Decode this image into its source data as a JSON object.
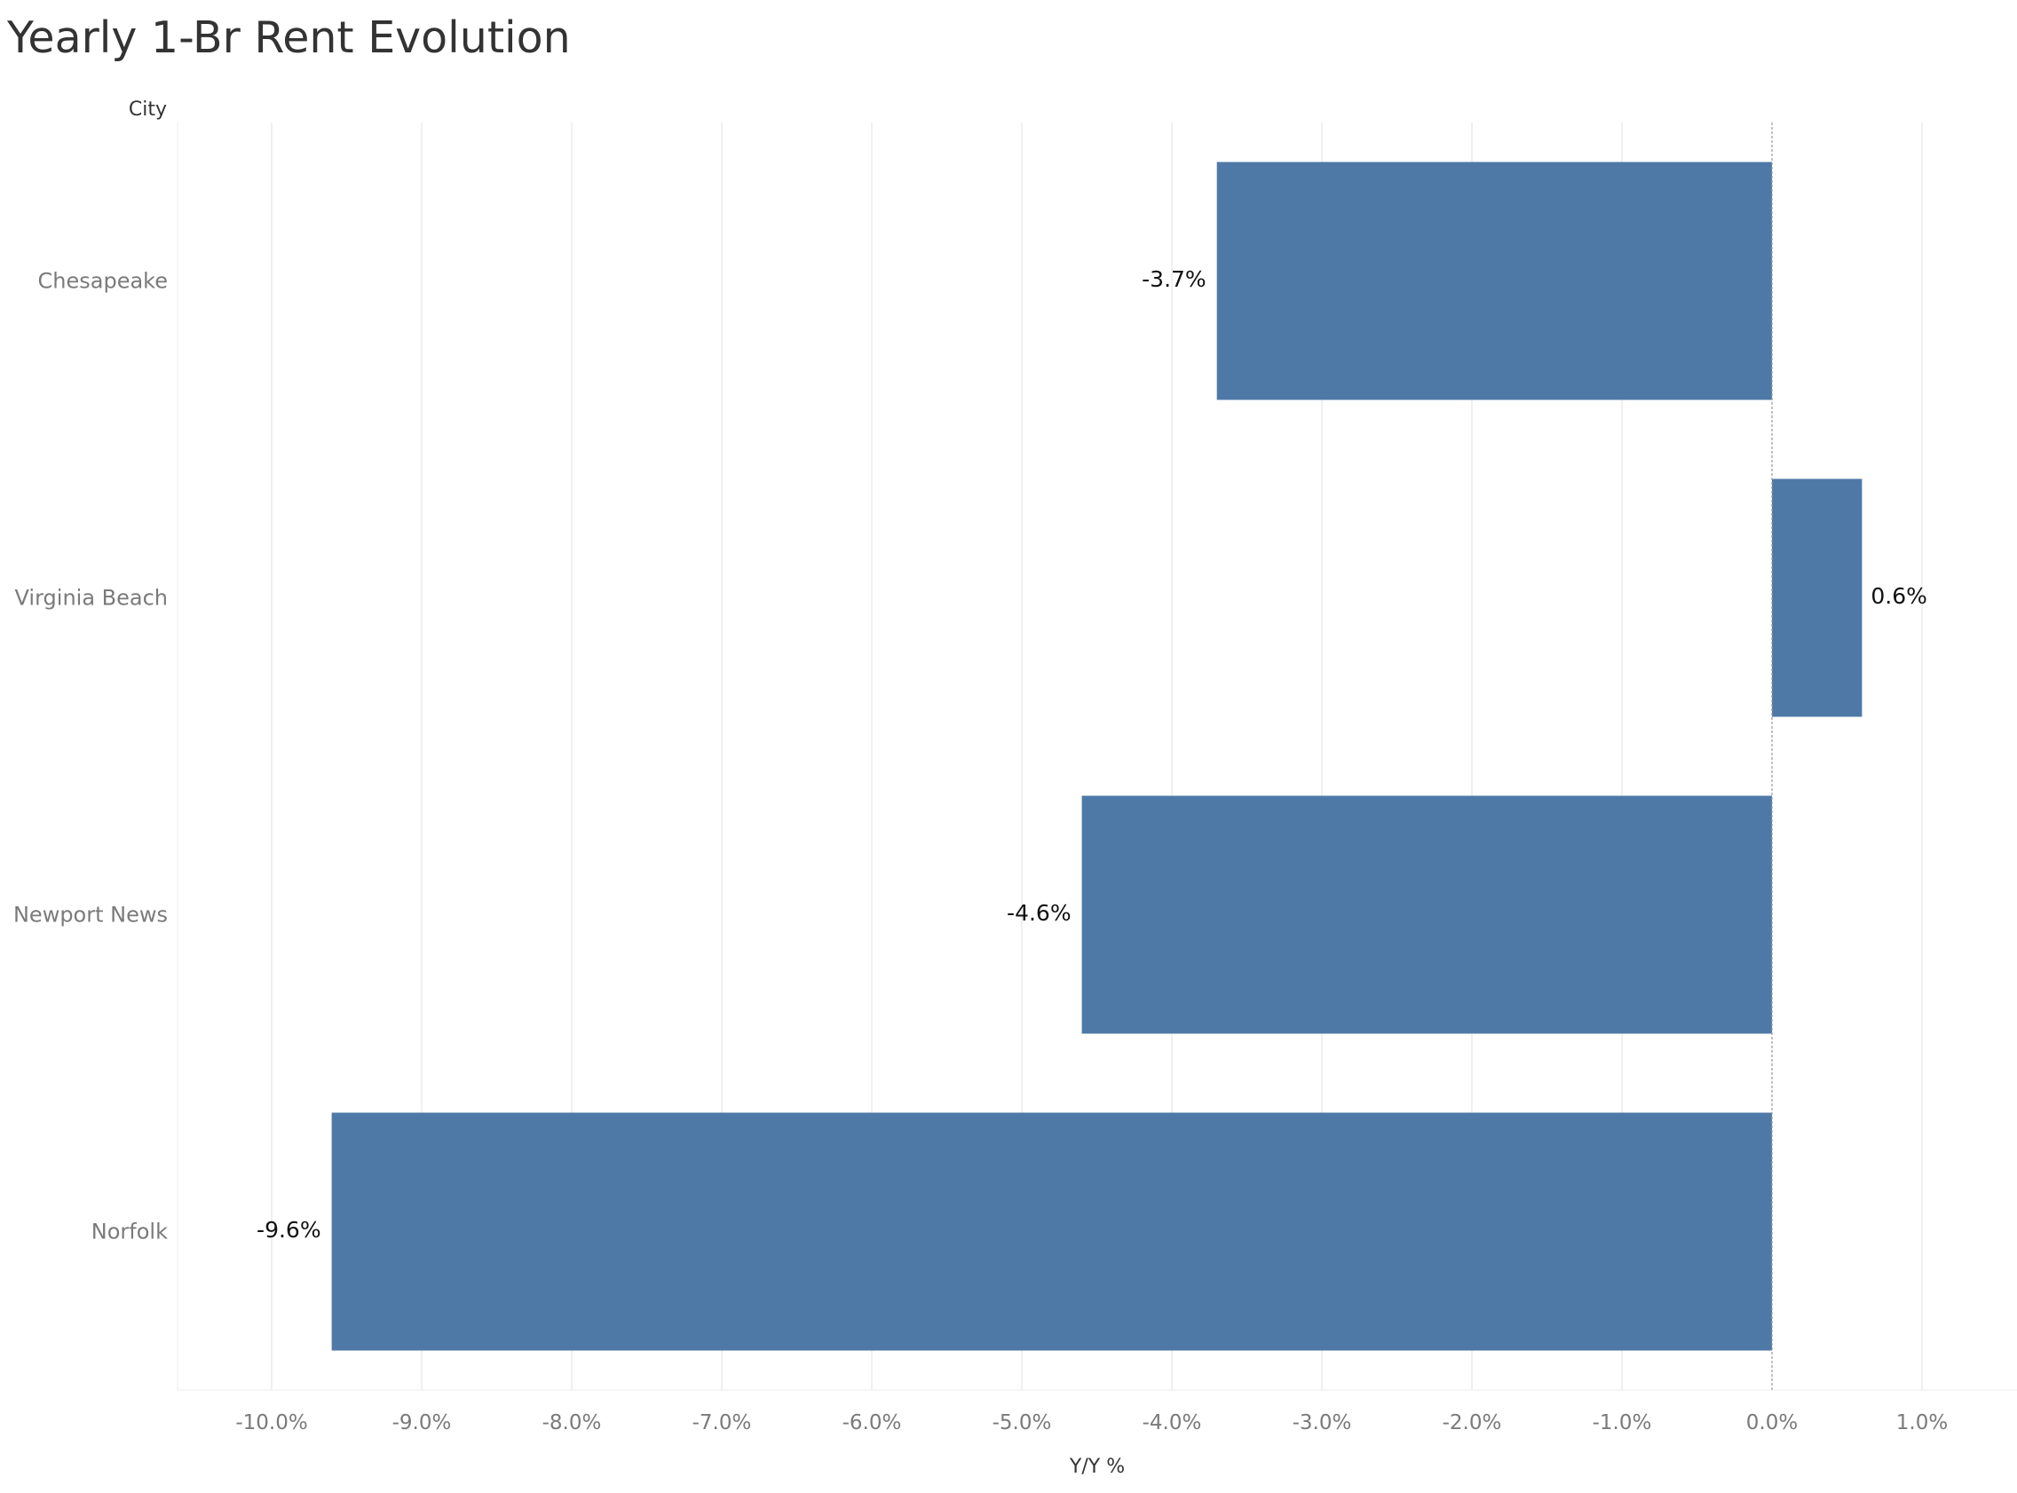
{
  "chart_data": {
    "type": "bar",
    "orientation": "horizontal",
    "title": "Yearly 1-Br Rent Evolution",
    "ylabel": "City",
    "xlabel": "Y/Y %",
    "categories": [
      "Chesapeake",
      "Virginia Beach",
      "Newport News",
      "Norfolk"
    ],
    "values": [
      -3.7,
      0.6,
      -4.6,
      -9.6
    ],
    "data_labels": [
      "-3.7%",
      "0.6%",
      "-4.6%",
      "-9.6%"
    ],
    "xlim": [
      -10.0,
      1.0
    ],
    "xticks": [
      -10,
      -9,
      -8,
      -7,
      -6,
      -5,
      -4,
      -3,
      -2,
      -1,
      0,
      1
    ],
    "xtick_labels": [
      "-10.0%",
      "-9.0%",
      "-8.0%",
      "-7.0%",
      "-6.0%",
      "-5.0%",
      "-4.0%",
      "-3.0%",
      "-2.0%",
      "-1.0%",
      "0.0%",
      "1.0%"
    ],
    "grid": "vertical",
    "bar_color": "#4e79a7"
  }
}
